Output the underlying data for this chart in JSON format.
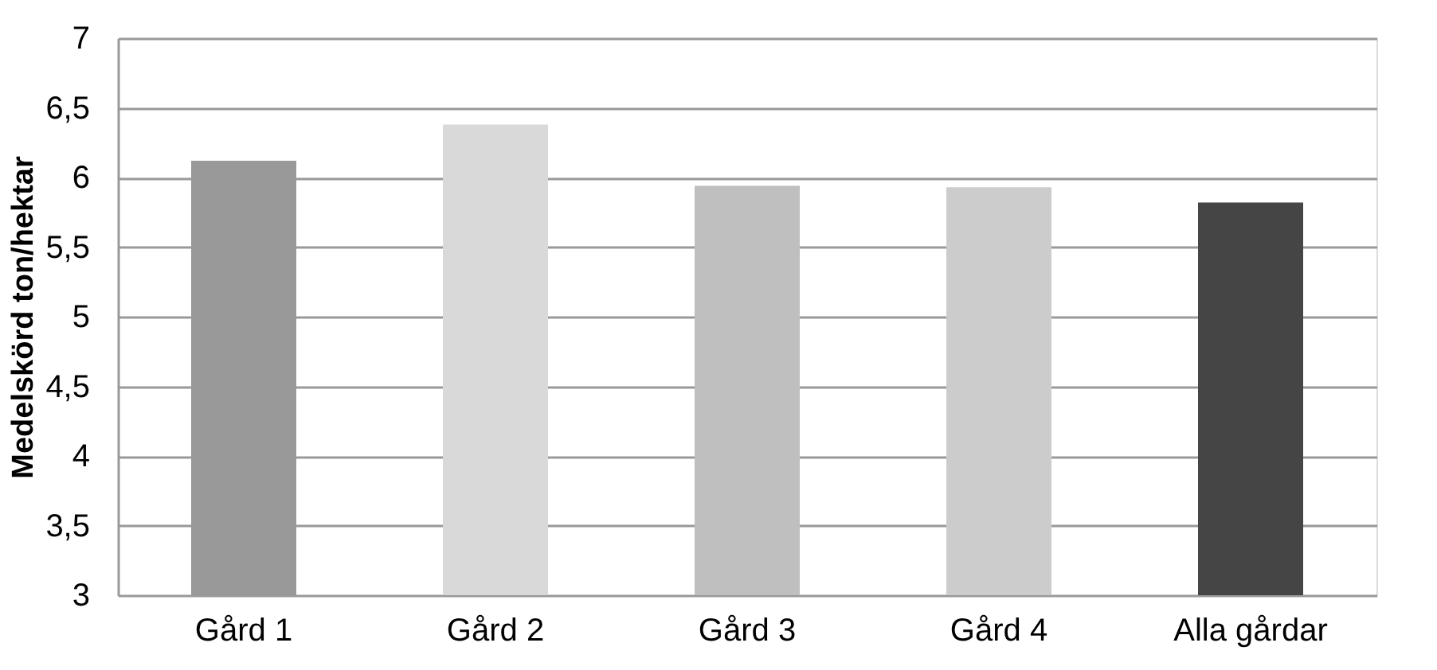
{
  "chart_data": {
    "type": "bar",
    "ylabel": "Medelskörd ton/hektar",
    "categories": [
      "Gård 1",
      "Gård 2",
      "Gård 3",
      "Gård 4",
      "Alla gårdar"
    ],
    "values": [
      6.12,
      6.38,
      5.94,
      5.93,
      5.82
    ],
    "colors": [
      "#999999",
      "#d9d9d9",
      "#bfbfbf",
      "#cccccc",
      "#454545"
    ],
    "ylim": [
      3,
      7
    ],
    "yticks": [
      3,
      {
        "value": 3.5,
        "label": "3,5"
      },
      4,
      {
        "value": 4.5,
        "label": "4,5"
      },
      5,
      {
        "value": 5.5,
        "label": "5,5"
      },
      6,
      {
        "value": 6.5,
        "label": "6,5"
      },
      7
    ],
    "grid": "y"
  }
}
